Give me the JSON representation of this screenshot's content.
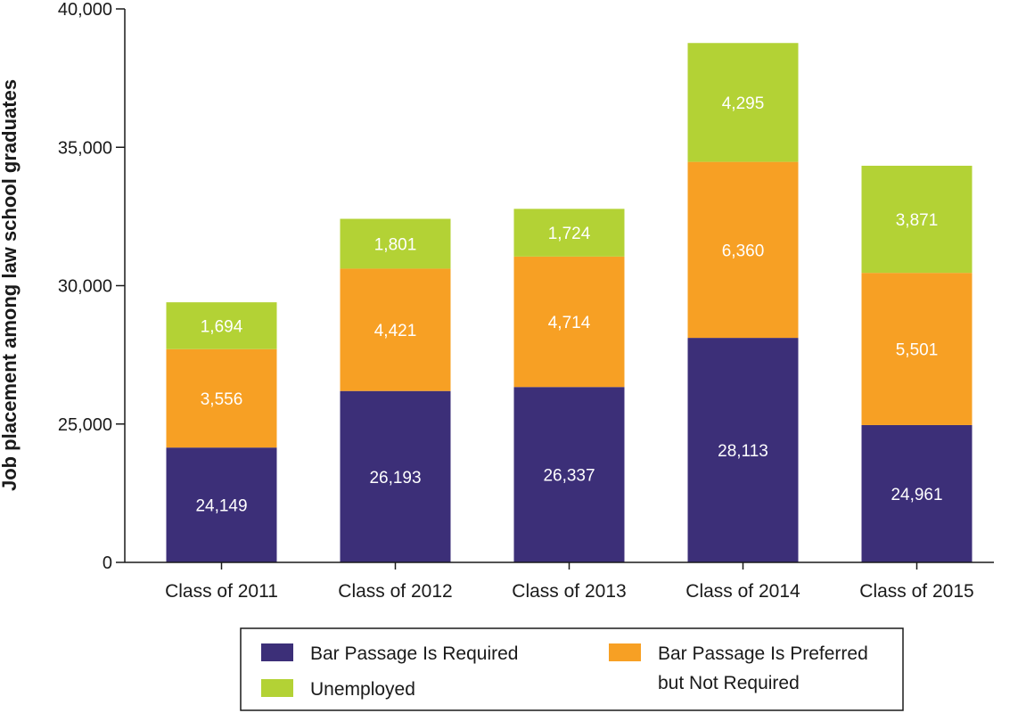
{
  "chart_data": {
    "type": "bar",
    "stacked": true,
    "categories": [
      "Class of 2011",
      "Class of 2012",
      "Class of 2013",
      "Class of 2014",
      "Class of 2015"
    ],
    "series": [
      {
        "name": "Bar Passage Is Required",
        "color": "#3c2f78",
        "values": [
          24149,
          26193,
          26337,
          28113,
          24961
        ]
      },
      {
        "name": "Bar Passage Is Preferred but Not Required",
        "color": "#f7a024",
        "values": [
          3556,
          4421,
          4714,
          6360,
          5501
        ]
      },
      {
        "name": "Unemployed",
        "color": "#b3d235",
        "values": [
          1694,
          1801,
          1724,
          4295,
          3871
        ]
      }
    ],
    "ylabel": "Job placement among law school graduates",
    "ylim": [
      20000,
      40000
    ],
    "yticks": [
      0,
      25000,
      30000,
      35000,
      40000
    ],
    "ytick_labels": [
      "0",
      "25,000",
      "30,000",
      "35,000",
      "40,000"
    ],
    "axis_break": true,
    "grid": false,
    "legend": {
      "placement": "bottom",
      "entries": [
        {
          "label": "Bar Passage Is Required",
          "lines": [
            "Bar Passage Is Required"
          ],
          "color": "#3c2f78"
        },
        {
          "label": "Bar Passage Is Preferred but Not Required",
          "lines": [
            "Bar Passage Is Preferred",
            "but Not Required"
          ],
          "color": "#f7a024"
        },
        {
          "label": "Unemployed",
          "lines": [
            "Unemployed"
          ],
          "color": "#b3d235"
        }
      ]
    }
  }
}
